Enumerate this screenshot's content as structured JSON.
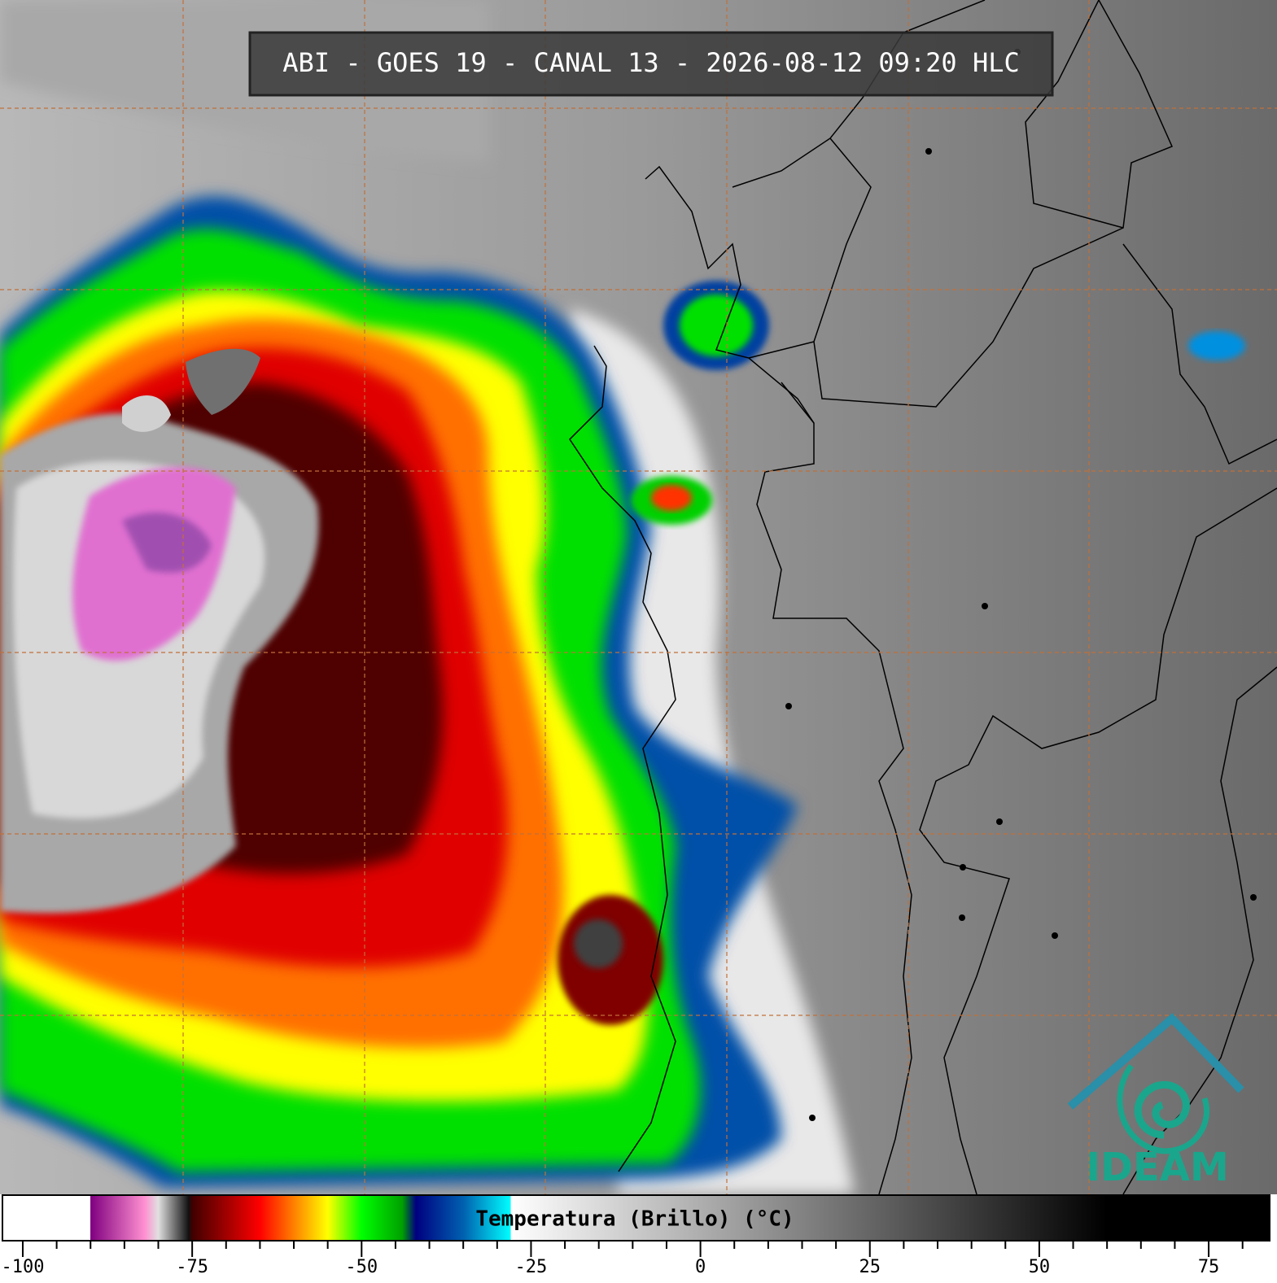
{
  "title": "ABI - GOES 19 - CANAL 13 - 2026-08-12 09:20 HLC",
  "logo": "IDEAM",
  "colorbar": {
    "label": "Temperatura (Brillo) (°C)",
    "range": [
      -103,
      84
    ],
    "ticks": [
      -100,
      -75,
      -50,
      -25,
      0,
      25,
      50,
      75
    ],
    "minor_ticks": [
      -95,
      -90,
      -85,
      -80,
      -70,
      -65,
      -60,
      -55,
      -45,
      -40,
      -35,
      -30,
      -20,
      -15,
      -10,
      -5,
      5,
      10,
      15,
      20,
      30,
      35,
      40,
      45,
      55,
      60,
      65,
      70,
      80
    ],
    "colormap": [
      {
        "value": -103,
        "color": "#ffffff"
      },
      {
        "value": -90,
        "color": "#ffffff"
      },
      {
        "value": -90,
        "color": "#800080"
      },
      {
        "value": -82,
        "color": "#ff90d0"
      },
      {
        "value": -80,
        "color": "#e0e0e0"
      },
      {
        "value": -75.5,
        "color": "#101010"
      },
      {
        "value": -75,
        "color": "#400000"
      },
      {
        "value": -70,
        "color": "#a00000"
      },
      {
        "value": -65,
        "color": "#ff0000"
      },
      {
        "value": -60,
        "color": "#ff8000"
      },
      {
        "value": -55,
        "color": "#ffff00"
      },
      {
        "value": -50,
        "color": "#00ff00"
      },
      {
        "value": -44,
        "color": "#00a000"
      },
      {
        "value": -42,
        "color": "#000080"
      },
      {
        "value": -35,
        "color": "#0060b0"
      },
      {
        "value": -28,
        "color": "#00ffff"
      },
      {
        "value": -28,
        "color": "#ffffff"
      },
      {
        "value": 60,
        "color": "#000000"
      },
      {
        "value": 84,
        "color": "#000000"
      }
    ]
  }
}
